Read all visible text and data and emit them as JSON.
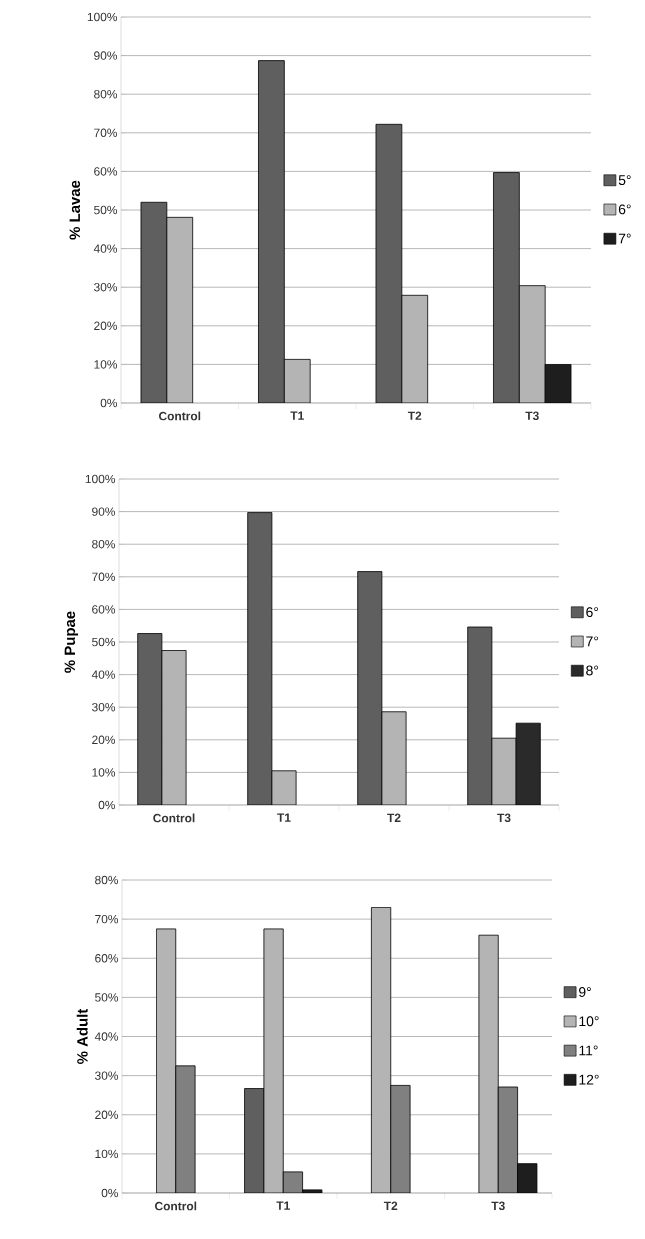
{
  "chart_data": [
    {
      "type": "bar",
      "ylabel": "% Lavae",
      "categories": [
        "Control",
        "T1",
        "T2",
        "T3"
      ],
      "series": [
        {
          "name": "5°",
          "color": "#5f5f5f",
          "values": [
            52,
            88.7,
            72.2,
            59.7
          ]
        },
        {
          "name": "6°",
          "color": "#b4b4b4",
          "values": [
            48.1,
            11.3,
            27.9,
            30.4
          ]
        },
        {
          "name": "7°",
          "color": "#1e1e1e",
          "values": [
            null,
            null,
            null,
            10
          ]
        }
      ],
      "ylim": [
        0,
        100
      ],
      "yticks": [
        {
          "value": 0,
          "label": "0%"
        },
        {
          "value": 10,
          "label": "10%"
        },
        {
          "value": 20,
          "label": "20%"
        },
        {
          "value": 30,
          "label": "30%"
        },
        {
          "value": 40,
          "label": "40%"
        },
        {
          "value": 50,
          "label": "50%"
        },
        {
          "value": 60,
          "label": "60%"
        },
        {
          "value": 70,
          "label": "70%"
        },
        {
          "value": 80,
          "label": "80%"
        },
        {
          "value": 90,
          "label": "90%"
        },
        {
          "value": 100,
          "label": "100%"
        }
      ],
      "grid": "y",
      "legend": "right"
    },
    {
      "type": "bar",
      "ylabel": "% Pupae",
      "categories": [
        "Control",
        "T1",
        "T2",
        "T3"
      ],
      "series": [
        {
          "name": "6°",
          "color": "#5f5f5f",
          "values": [
            52.6,
            89.7,
            71.6,
            54.6
          ]
        },
        {
          "name": "7°",
          "color": "#b4b4b4",
          "values": [
            47.4,
            10.5,
            28.6,
            20.5
          ]
        },
        {
          "name": "8°",
          "color": "#2a2a2a",
          "values": [
            null,
            null,
            null,
            25.1
          ]
        }
      ],
      "ylim": [
        0,
        100
      ],
      "yticks": [
        {
          "value": 0,
          "label": "0%"
        },
        {
          "value": 10,
          "label": "10%"
        },
        {
          "value": 20,
          "label": "20%"
        },
        {
          "value": 30,
          "label": "30%"
        },
        {
          "value": 40,
          "label": "40%"
        },
        {
          "value": 50,
          "label": "50%"
        },
        {
          "value": 60,
          "label": "60%"
        },
        {
          "value": 70,
          "label": "70%"
        },
        {
          "value": 80,
          "label": "80%"
        },
        {
          "value": 90,
          "label": "90%"
        },
        {
          "value": 100,
          "label": "100%"
        }
      ],
      "grid": "y",
      "legend": "right"
    },
    {
      "type": "bar",
      "ylabel": "% Adult",
      "categories": [
        "Control",
        "T1",
        "T2",
        "T3"
      ],
      "series": [
        {
          "name": "9°",
          "color": "#5f5f5f",
          "values": [
            null,
            26.7,
            null,
            null
          ]
        },
        {
          "name": "10°",
          "color": "#b4b4b4",
          "values": [
            67.5,
            67.5,
            73,
            65.9
          ]
        },
        {
          "name": "11°",
          "color": "#808080",
          "values": [
            32.5,
            5.4,
            27.5,
            27.1
          ]
        },
        {
          "name": "12°",
          "color": "#1e1e1e",
          "values": [
            null,
            0.8,
            null,
            7.5
          ]
        }
      ],
      "ylim": [
        0,
        80
      ],
      "yticks": [
        {
          "value": 0,
          "label": "0%"
        },
        {
          "value": 10,
          "label": "10%"
        },
        {
          "value": 20,
          "label": "20%"
        },
        {
          "value": 30,
          "label": "30%"
        },
        {
          "value": 40,
          "label": "40%"
        },
        {
          "value": 50,
          "label": "50%"
        },
        {
          "value": 60,
          "label": "60%"
        },
        {
          "value": 70,
          "label": "70%"
        },
        {
          "value": 80,
          "label": "80%"
        }
      ],
      "grid": "y",
      "legend": "right"
    }
  ]
}
